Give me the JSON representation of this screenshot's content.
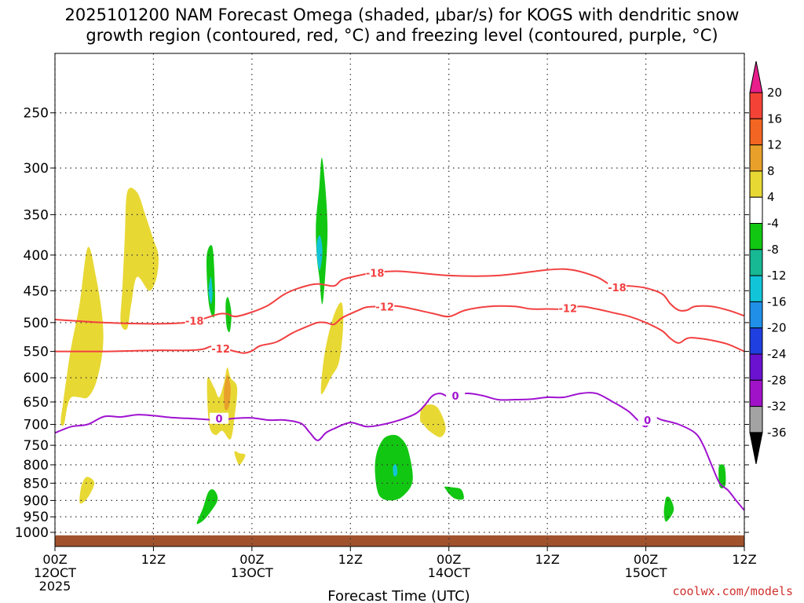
{
  "title": {
    "line1": "2025101200 NAM Forecast Omega (shaded, μbar/s) for KOGS with dendritic snow",
    "line2": "growth region (contoured, red, °C) and freezing level (contoured, purple, °C)"
  },
  "credit": "coolwx.com/models",
  "chart_data": {
    "type": "heatmap",
    "xlabel": "Forecast Time (UTC)",
    "x_range_hours": [
      0,
      84
    ],
    "x_ticks": [
      {
        "hour": 0,
        "lines": [
          "00Z",
          "12OCT",
          "2025"
        ]
      },
      {
        "hour": 12,
        "lines": [
          "12Z"
        ]
      },
      {
        "hour": 24,
        "lines": [
          "00Z",
          "13OCT"
        ]
      },
      {
        "hour": 36,
        "lines": [
          "12Z"
        ]
      },
      {
        "hour": 48,
        "lines": [
          "00Z",
          "14OCT"
        ]
      },
      {
        "hour": 60,
        "lines": [
          "12Z"
        ]
      },
      {
        "hour": 72,
        "lines": [
          "00Z",
          "15OCT"
        ]
      },
      {
        "hour": 84,
        "lines": [
          "12Z"
        ]
      }
    ],
    "y_ticks": [
      250,
      300,
      350,
      400,
      450,
      500,
      550,
      600,
      650,
      700,
      750,
      800,
      850,
      900,
      950,
      1000
    ],
    "y_range_hpa": [
      200,
      1020
    ],
    "y_scale": "log",
    "colorbar": {
      "labels": [
        "20",
        "16",
        "12",
        "8",
        "4",
        "-4",
        "-8",
        "-12",
        "-16",
        "-20",
        "-24",
        "-28",
        "-32",
        "-36"
      ],
      "colors_top_to_bottom": [
        "#e91e8c",
        "#f44336",
        "#f26522",
        "#e8a02b",
        "#e8d834",
        "#ffffff",
        "#12c712",
        "#17b894",
        "#12c4d8",
        "#1f8fe8",
        "#1f3fe0",
        "#6a12d0",
        "#a012c8",
        "#a3a3a3",
        "#000000"
      ]
    },
    "contours": [
      {
        "label": "-18",
        "color": "#f24040",
        "points": [
          [
            0,
            495
          ],
          [
            6,
            500
          ],
          [
            12,
            502
          ],
          [
            16,
            500
          ],
          [
            18,
            494
          ],
          [
            20,
            486
          ],
          [
            21,
            486
          ],
          [
            22,
            490
          ],
          [
            24,
            483
          ],
          [
            26,
            472
          ],
          [
            28,
            455
          ],
          [
            30,
            445
          ],
          [
            32,
            440
          ],
          [
            34,
            443
          ],
          [
            35,
            434
          ],
          [
            37,
            428
          ],
          [
            39,
            424
          ],
          [
            42,
            422
          ],
          [
            48,
            428
          ],
          [
            54,
            428
          ],
          [
            60,
            420
          ],
          [
            63,
            420
          ],
          [
            66,
            430
          ],
          [
            68,
            443
          ],
          [
            70,
            443
          ],
          [
            72,
            446
          ],
          [
            74,
            455
          ],
          [
            75,
            470
          ],
          [
            76,
            480
          ],
          [
            77,
            480
          ],
          [
            78,
            474
          ],
          [
            80,
            474
          ],
          [
            82,
            480
          ],
          [
            84,
            489
          ]
        ]
      },
      {
        "label": "-12",
        "color": "#f24040",
        "points": [
          [
            0,
            550
          ],
          [
            6,
            550
          ],
          [
            12,
            548
          ],
          [
            16,
            548
          ],
          [
            18,
            546
          ],
          [
            19,
            541
          ],
          [
            20,
            543
          ],
          [
            22,
            550
          ],
          [
            23,
            553
          ],
          [
            24,
            549
          ],
          [
            25,
            540
          ],
          [
            27,
            533
          ],
          [
            29,
            517
          ],
          [
            31,
            505
          ],
          [
            32,
            500
          ],
          [
            33,
            500
          ],
          [
            34,
            503
          ],
          [
            35,
            492
          ],
          [
            37,
            480
          ],
          [
            38,
            475
          ],
          [
            40,
            474
          ],
          [
            42,
            474
          ],
          [
            46,
            485
          ],
          [
            48,
            490
          ],
          [
            50,
            480
          ],
          [
            53,
            474
          ],
          [
            56,
            474
          ],
          [
            58,
            478
          ],
          [
            60,
            478
          ],
          [
            62,
            478
          ],
          [
            64,
            474
          ],
          [
            66,
            478
          ],
          [
            68,
            484
          ],
          [
            70,
            490
          ],
          [
            72,
            500
          ],
          [
            74,
            514
          ],
          [
            75,
            527
          ],
          [
            76,
            535
          ],
          [
            77,
            527
          ],
          [
            78,
            526
          ],
          [
            80,
            530
          ],
          [
            82,
            537
          ],
          [
            84,
            550
          ]
        ]
      },
      {
        "label": "0",
        "color": "#a012d0",
        "points": [
          [
            0,
            720
          ],
          [
            2,
            705
          ],
          [
            4,
            700
          ],
          [
            6,
            682
          ],
          [
            8,
            683
          ],
          [
            10,
            678
          ],
          [
            12,
            680
          ],
          [
            14,
            684
          ],
          [
            16,
            686
          ],
          [
            18,
            688
          ],
          [
            20,
            690
          ],
          [
            22,
            686
          ],
          [
            24,
            685
          ],
          [
            26,
            690
          ],
          [
            28,
            690
          ],
          [
            30,
            698
          ],
          [
            31,
            718
          ],
          [
            32,
            738
          ],
          [
            33,
            720
          ],
          [
            34,
            710
          ],
          [
            36,
            696
          ],
          [
            38,
            705
          ],
          [
            40,
            700
          ],
          [
            42,
            690
          ],
          [
            44,
            675
          ],
          [
            45,
            658
          ],
          [
            46,
            637
          ],
          [
            47,
            632
          ],
          [
            48,
            640
          ],
          [
            49,
            645
          ],
          [
            50,
            632
          ],
          [
            52,
            636
          ],
          [
            54,
            645
          ],
          [
            56,
            645
          ],
          [
            58,
            644
          ],
          [
            60,
            640
          ],
          [
            62,
            640
          ],
          [
            64,
            632
          ],
          [
            66,
            632
          ],
          [
            68,
            650
          ],
          [
            69,
            660
          ],
          [
            70,
            672
          ],
          [
            71,
            690
          ],
          [
            72,
            705
          ],
          [
            73,
            685
          ],
          [
            74,
            690
          ],
          [
            76,
            700
          ],
          [
            78,
            720
          ],
          [
            79,
            750
          ],
          [
            80,
            800
          ],
          [
            81,
            850
          ],
          [
            82,
            870
          ],
          [
            83,
            900
          ],
          [
            84,
            930
          ]
        ]
      }
    ],
    "regions": [
      {
        "color": "#e8d834",
        "points": [
          [
            0.7,
            695
          ],
          [
            1,
            650
          ],
          [
            1.5,
            590
          ],
          [
            2,
            540
          ],
          [
            3,
            470
          ],
          [
            4,
            390
          ],
          [
            5,
            430
          ],
          [
            5.8,
            495
          ],
          [
            5.8,
            550
          ],
          [
            5,
            610
          ],
          [
            4,
            640
          ],
          [
            3,
            640
          ],
          [
            2,
            640
          ],
          [
            1.5,
            660
          ],
          [
            1.1,
            700
          ]
        ]
      },
      {
        "color": "#e8d834",
        "points": [
          [
            8,
            500
          ],
          [
            8.2,
            450
          ],
          [
            8.5,
            380
          ],
          [
            8.8,
            325
          ],
          [
            10,
            325
          ],
          [
            11,
            350
          ],
          [
            12,
            380
          ],
          [
            12.6,
            400
          ],
          [
            12.4,
            430
          ],
          [
            11.5,
            450
          ],
          [
            10,
            430
          ],
          [
            9.3,
            470
          ],
          [
            8.8,
            510
          ]
        ]
      },
      {
        "color": "#e8d834",
        "points": [
          [
            3,
            905
          ],
          [
            3.2,
            860
          ],
          [
            3.7,
            835
          ],
          [
            4.3,
            835
          ],
          [
            4.8,
            850
          ],
          [
            4.3,
            880
          ],
          [
            3.5,
            905
          ]
        ]
      },
      {
        "color": "#e8d834",
        "points": [
          [
            18.6,
            600
          ],
          [
            19.4,
            620
          ],
          [
            20,
            640
          ],
          [
            20.6,
            610
          ],
          [
            21,
            580
          ],
          [
            21.4,
            600
          ],
          [
            22.2,
            620
          ],
          [
            21.9,
            680
          ],
          [
            21.4,
            735
          ],
          [
            20.4,
            715
          ],
          [
            19.6,
            725
          ],
          [
            18.9,
            710
          ],
          [
            18.6,
            660
          ]
        ]
      },
      {
        "color": "#e8d834",
        "points": [
          [
            21.9,
            765
          ],
          [
            22.5,
            770
          ],
          [
            23.2,
            775
          ],
          [
            22.5,
            800
          ],
          [
            22,
            780
          ]
        ]
      },
      {
        "color": "#e8d834",
        "points": [
          [
            32.4,
            625
          ],
          [
            32.8,
            560
          ],
          [
            33.6,
            505
          ],
          [
            34.4,
            475
          ],
          [
            35,
            470
          ],
          [
            35.1,
            510
          ],
          [
            34.6,
            570
          ],
          [
            33.6,
            600
          ],
          [
            32.7,
            630
          ]
        ]
      },
      {
        "color": "#e8d834",
        "points": [
          [
            44.5,
            690
          ],
          [
            44.8,
            660
          ],
          [
            46.5,
            660
          ],
          [
            47.6,
            705
          ],
          [
            47,
            730
          ],
          [
            45.6,
            715
          ],
          [
            44.9,
            700
          ]
        ]
      },
      {
        "color": "#e8a02b",
        "points": [
          [
            20.6,
            625
          ],
          [
            21,
            595
          ],
          [
            21.4,
            620
          ],
          [
            21.2,
            660
          ],
          [
            20.7,
            665
          ]
        ]
      },
      {
        "color": "#12c712",
        "points": [
          [
            18.5,
            400
          ],
          [
            19.2,
            390
          ],
          [
            19.5,
            450
          ],
          [
            19.4,
            490
          ],
          [
            18.9,
            480
          ],
          [
            18.6,
            450
          ]
        ]
      },
      {
        "color": "#12c712",
        "points": [
          [
            20.8,
            470
          ],
          [
            21.1,
            460
          ],
          [
            21.5,
            485
          ],
          [
            21.3,
            515
          ],
          [
            20.9,
            505
          ]
        ]
      },
      {
        "color": "#12c712",
        "points": [
          [
            17.3,
            968
          ],
          [
            18,
            925
          ],
          [
            18.7,
            875
          ],
          [
            19.4,
            870
          ],
          [
            19.8,
            900
          ],
          [
            18.5,
            950
          ],
          [
            17.6,
            970
          ]
        ]
      },
      {
        "color": "#12c712",
        "points": [
          [
            31.8,
            360
          ],
          [
            32.2,
            320
          ],
          [
            32.5,
            290
          ],
          [
            32.9,
            315
          ],
          [
            33.2,
            360
          ],
          [
            33.1,
            400
          ],
          [
            32.6,
            470
          ],
          [
            32.2,
            430
          ],
          [
            31.9,
            400
          ]
        ]
      },
      {
        "color": "#12c712",
        "points": [
          [
            39,
            820
          ],
          [
            39.2,
            770
          ],
          [
            40,
            735
          ],
          [
            41,
            725
          ],
          [
            42,
            730
          ],
          [
            43,
            760
          ],
          [
            43.6,
            840
          ],
          [
            42.5,
            885
          ],
          [
            41,
            900
          ],
          [
            39.5,
            885
          ]
        ]
      },
      {
        "color": "#12c712",
        "points": [
          [
            47.5,
            860
          ],
          [
            48.5,
            862
          ],
          [
            49.5,
            868
          ],
          [
            49.8,
            895
          ],
          [
            48.8,
            895
          ],
          [
            48,
            880
          ],
          [
            47.7,
            870
          ]
        ]
      },
      {
        "color": "#12c712",
        "points": [
          [
            74.3,
            910
          ],
          [
            74.5,
            890
          ],
          [
            75,
            895
          ],
          [
            75.4,
            930
          ],
          [
            74.5,
            965
          ],
          [
            74.2,
            940
          ]
        ]
      },
      {
        "color": "#12c712",
        "points": [
          [
            80.9,
            805
          ],
          [
            81.6,
            805
          ],
          [
            81.7,
            855
          ],
          [
            81,
            860
          ]
        ]
      },
      {
        "color": "#12c4d8",
        "points": [
          [
            31.9,
            385
          ],
          [
            32.3,
            375
          ],
          [
            32.6,
            395
          ],
          [
            32.3,
            420
          ],
          [
            32,
            410
          ]
        ]
      },
      {
        "color": "#12c4d8",
        "points": [
          [
            18.7,
            450
          ],
          [
            19,
            430
          ],
          [
            19.2,
            455
          ],
          [
            19,
            470
          ]
        ]
      },
      {
        "color": "#12c4d8",
        "points": [
          [
            41.2,
            805
          ],
          [
            41.6,
            800
          ],
          [
            41.7,
            825
          ],
          [
            41.3,
            830
          ]
        ]
      }
    ],
    "terrain": {
      "color": "#a0522d",
      "top_hpa": 1010
    }
  }
}
